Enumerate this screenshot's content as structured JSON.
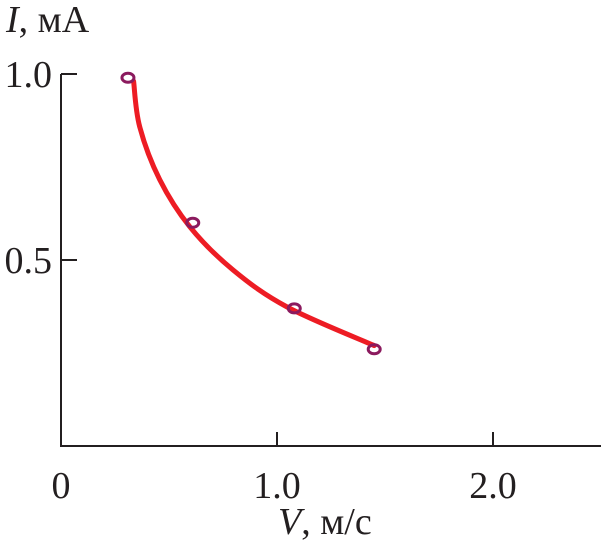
{
  "chart_data": {
    "type": "scatter",
    "title": "",
    "xlabel": {
      "var": "V",
      "unit": ", м/с"
    },
    "ylabel": {
      "var": "I",
      "unit": ", мА"
    },
    "xlim": [
      0,
      2.5
    ],
    "ylim": [
      0,
      1.0
    ],
    "x_ticks": [
      {
        "value": 0,
        "label": "0"
      },
      {
        "value": 1.0,
        "label": "1.0"
      },
      {
        "value": 2.0,
        "label": "2.0"
      }
    ],
    "y_ticks": [
      {
        "value": 0.5,
        "label": "0.5"
      },
      {
        "value": 1.0,
        "label": "1.0"
      }
    ],
    "grid": false,
    "series": [
      {
        "kind": "points",
        "marker": "open-circle",
        "color": "#8b1a5e",
        "x": [
          0.31,
          0.61,
          1.08,
          1.45
        ],
        "y": [
          0.99,
          0.6,
          0.37,
          0.26
        ]
      },
      {
        "kind": "fit-curve",
        "color": "#ed1c24",
        "x": [
          0.336,
          0.364,
          0.457,
          0.597,
          0.797,
          1.049,
          1.45
        ],
        "y": [
          0.981,
          0.859,
          0.716,
          0.589,
          0.473,
          0.373,
          0.27
        ]
      }
    ]
  }
}
